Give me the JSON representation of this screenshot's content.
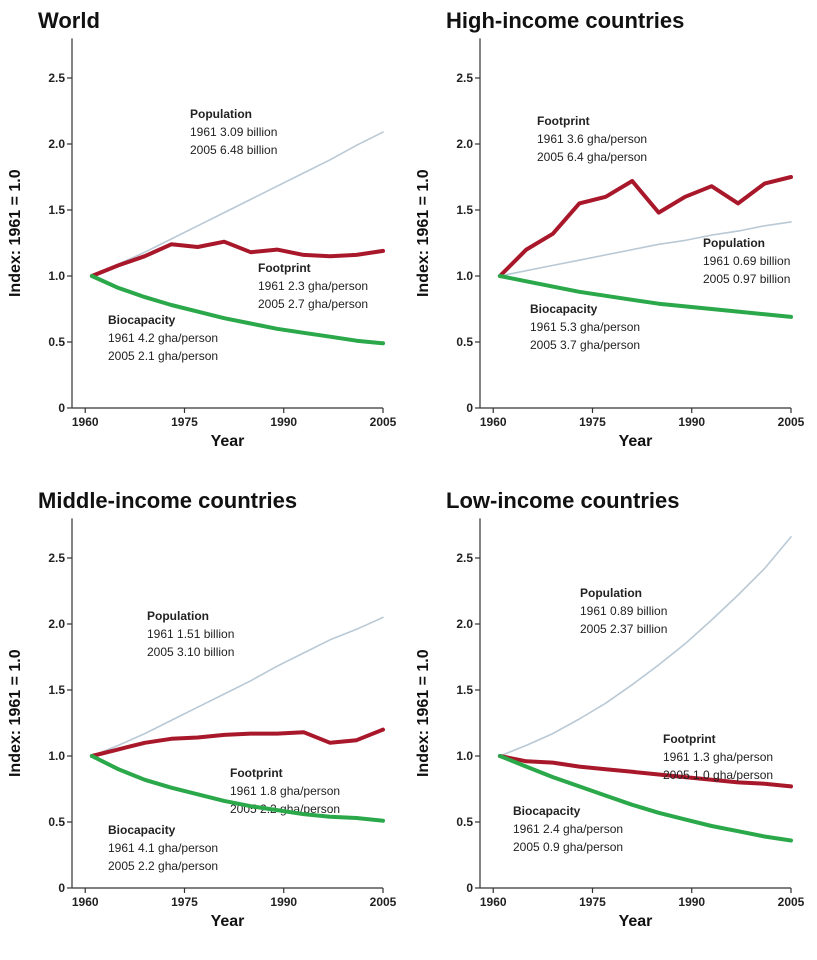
{
  "chart_data": [
    {
      "type": "line",
      "title": "World",
      "x_label": "Year",
      "y_label": "Index: 1961 = 1.0",
      "x": [
        1961,
        1965,
        1969,
        1973,
        1977,
        1981,
        1985,
        1989,
        1993,
        1997,
        2001,
        2005
      ],
      "xlim": [
        1958,
        2005
      ],
      "xticks": [
        1960,
        1975,
        1990,
        2005
      ],
      "ylim": [
        0,
        2.8
      ],
      "yticks": [
        0,
        0.5,
        {
          "value": 1,
          "label": "1.0"
        },
        1.5,
        {
          "value": 2,
          "label": "2.0"
        },
        2.5
      ],
      "series": [
        {
          "name": "Population",
          "color": "#b9c9d5",
          "notes": [
            "1961 3.09 billion",
            "2005 6.48 billion"
          ],
          "values": [
            1.0,
            1.09,
            1.18,
            1.28,
            1.38,
            1.48,
            1.58,
            1.68,
            1.78,
            1.88,
            1.99,
            2.09
          ]
        },
        {
          "name": "Footprint",
          "color": "#a8182a",
          "notes": [
            "1961 2.3 gha/person",
            "2005 2.7 gha/person"
          ],
          "values": [
            1.0,
            1.08,
            1.15,
            1.24,
            1.22,
            1.26,
            1.18,
            1.2,
            1.16,
            1.15,
            1.16,
            1.19
          ]
        },
        {
          "name": "Biocapacity",
          "color": "#2aa84a",
          "notes": [
            "1961 4.2 gha/person",
            "2005 2.1 gha/person"
          ],
          "values": [
            1.0,
            0.91,
            0.84,
            0.78,
            0.73,
            0.68,
            0.64,
            0.6,
            0.57,
            0.54,
            0.51,
            0.49
          ]
        }
      ]
    },
    {
      "type": "line",
      "title": "High-income countries",
      "x_label": "Year",
      "y_label": "Index: 1961 = 1.0",
      "x": [
        1961,
        1965,
        1969,
        1973,
        1977,
        1981,
        1985,
        1989,
        1993,
        1997,
        2001,
        2005
      ],
      "xlim": [
        1958,
        2005
      ],
      "xticks": [
        1960,
        1975,
        1990,
        2005
      ],
      "ylim": [
        0,
        2.8
      ],
      "yticks": [
        0,
        0.5,
        {
          "value": 1,
          "label": "1.0"
        },
        1.5,
        {
          "value": 2,
          "label": "2.0"
        },
        2.5
      ],
      "series": [
        {
          "name": "Footprint",
          "color": "#a8182a",
          "notes": [
            "1961 3.6 gha/person",
            "2005 6.4 gha/person"
          ],
          "values": [
            1.0,
            1.2,
            1.32,
            1.55,
            1.6,
            1.72,
            1.48,
            1.6,
            1.68,
            1.55,
            1.7,
            1.75
          ]
        },
        {
          "name": "Population",
          "color": "#b9c9d5",
          "notes": [
            "1961 0.69 billion",
            "2005 0.97 billion"
          ],
          "values": [
            1.0,
            1.04,
            1.08,
            1.12,
            1.16,
            1.2,
            1.24,
            1.27,
            1.31,
            1.34,
            1.38,
            1.41
          ]
        },
        {
          "name": "Biocapacity",
          "color": "#2aa84a",
          "notes": [
            "1961 5.3 gha/person",
            "2005 3.7 gha/person"
          ],
          "values": [
            1.0,
            0.96,
            0.92,
            0.88,
            0.85,
            0.82,
            0.79,
            0.77,
            0.75,
            0.73,
            0.71,
            0.69
          ]
        }
      ]
    },
    {
      "type": "line",
      "title": "Middle-income countries",
      "x_label": "Year",
      "y_label": "Index: 1961 = 1.0",
      "x": [
        1961,
        1965,
        1969,
        1973,
        1977,
        1981,
        1985,
        1989,
        1993,
        1997,
        2001,
        2005
      ],
      "xlim": [
        1958,
        2005
      ],
      "xticks": [
        1960,
        1975,
        1990,
        2005
      ],
      "ylim": [
        0,
        2.8
      ],
      "yticks": [
        0,
        0.5,
        {
          "value": 1,
          "label": "1.0"
        },
        1.5,
        {
          "value": 2,
          "label": "2.0"
        },
        2.5
      ],
      "series": [
        {
          "name": "Population",
          "color": "#b9c9d5",
          "notes": [
            "1961 1.51 billion",
            "2005 3.10 billion"
          ],
          "values": [
            1.0,
            1.08,
            1.17,
            1.27,
            1.37,
            1.47,
            1.57,
            1.68,
            1.78,
            1.88,
            1.96,
            2.05
          ]
        },
        {
          "name": "Footprint",
          "color": "#a8182a",
          "notes": [
            "1961 1.8 gha/person",
            "2005 2.2 gha/person"
          ],
          "values": [
            1.0,
            1.05,
            1.1,
            1.13,
            1.14,
            1.16,
            1.17,
            1.17,
            1.18,
            1.1,
            1.12,
            1.2
          ]
        },
        {
          "name": "Biocapacity",
          "color": "#2aa84a",
          "notes": [
            "1961 4.1 gha/person",
            "2005 2.2 gha/person"
          ],
          "values": [
            1.0,
            0.9,
            0.82,
            0.76,
            0.71,
            0.66,
            0.62,
            0.59,
            0.56,
            0.54,
            0.53,
            0.51
          ]
        }
      ]
    },
    {
      "type": "line",
      "title": "Low-income countries",
      "x_label": "Year",
      "y_label": "Index: 1961 = 1.0",
      "x": [
        1961,
        1965,
        1969,
        1973,
        1977,
        1981,
        1985,
        1989,
        1993,
        1997,
        2001,
        2005
      ],
      "xlim": [
        1958,
        2005
      ],
      "xticks": [
        1960,
        1975,
        1990,
        2005
      ],
      "ylim": [
        0,
        2.8
      ],
      "yticks": [
        0,
        0.5,
        {
          "value": 1,
          "label": "1.0"
        },
        1.5,
        {
          "value": 2,
          "label": "2.0"
        },
        2.5
      ],
      "series": [
        {
          "name": "Population",
          "color": "#b9c9d5",
          "notes": [
            "1961 0.89 billion",
            "2005 2.37 billion"
          ],
          "values": [
            1.0,
            1.08,
            1.17,
            1.28,
            1.4,
            1.54,
            1.69,
            1.85,
            2.03,
            2.22,
            2.42,
            2.66
          ]
        },
        {
          "name": "Footprint",
          "color": "#a8182a",
          "notes": [
            "1961 1.3 gha/person",
            "2005 1.0 gha/person"
          ],
          "values": [
            1.0,
            0.96,
            0.95,
            0.92,
            0.9,
            0.88,
            0.86,
            0.84,
            0.82,
            0.8,
            0.79,
            0.77
          ]
        },
        {
          "name": "Biocapacity",
          "color": "#2aa84a",
          "notes": [
            "1961 2.4 gha/person",
            "2005 0.9 gha/person"
          ],
          "values": [
            1.0,
            0.92,
            0.84,
            0.77,
            0.7,
            0.63,
            0.57,
            0.52,
            0.47,
            0.43,
            0.39,
            0.36
          ]
        }
      ]
    }
  ]
}
